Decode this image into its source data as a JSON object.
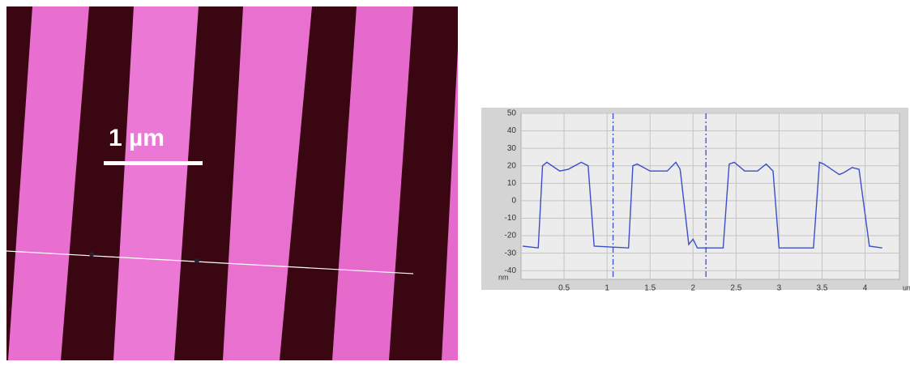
{
  "scale_bar_label": "1 µm",
  "chart_data": {
    "type": "line",
    "x_unit": "um",
    "y_unit": "nm",
    "x": [
      0.02,
      0.2,
      0.25,
      0.3,
      0.45,
      0.55,
      0.7,
      0.78,
      0.85,
      1.25,
      1.3,
      1.35,
      1.5,
      1.7,
      1.8,
      1.85,
      1.95,
      2.0,
      2.05,
      2.35,
      2.42,
      2.48,
      2.6,
      2.75,
      2.85,
      2.93,
      3.0,
      3.4,
      3.47,
      3.52,
      3.7,
      3.75,
      3.85,
      3.93,
      4.05,
      4.2
    ],
    "series": [
      {
        "color": "#3b4fc8",
        "values": [
          -26,
          -27,
          20,
          22,
          17,
          18,
          22,
          20,
          -26,
          -27,
          20,
          21,
          17,
          17,
          22,
          18,
          -25,
          -22,
          -27,
          -27,
          21,
          22,
          17,
          17,
          21,
          17,
          -27,
          -27,
          22,
          21,
          15,
          16,
          19,
          18,
          -26,
          -27
        ]
      }
    ],
    "cursor_x": [
      1.07,
      2.15
    ],
    "xlim": [
      0,
      4.4
    ],
    "ylim": [
      -45,
      50
    ],
    "xticks": [
      0.5,
      1,
      1.5,
      2,
      2.5,
      3,
      3.5,
      4
    ],
    "yticks": [
      -40,
      -30,
      -20,
      -10,
      0,
      10,
      20,
      30,
      40,
      50
    ],
    "grid": true
  }
}
